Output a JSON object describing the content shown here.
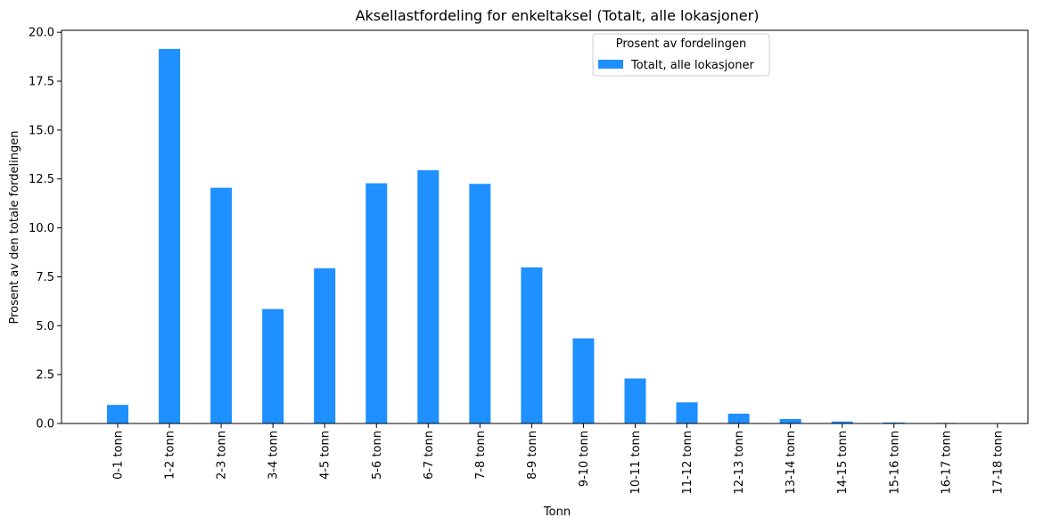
{
  "chart_data": {
    "type": "bar",
    "title": "Aksellastfordeling for enkeltaksel (Totalt, alle lokasjoner)",
    "xlabel": "Tonn",
    "ylabel": "Prosent av den totale fordelingen",
    "categories": [
      "0-1 tonn",
      "1-2 tonn",
      "2-3 tonn",
      "3-4 tonn",
      "4-5 tonn",
      "5-6 tonn",
      "6-7 tonn",
      "7-8 tonn",
      "8-9 tonn",
      "9-10 tonn",
      "10-11 tonn",
      "11-12 tonn",
      "12-13 tonn",
      "13-14 tonn",
      "14-15 tonn",
      "15-16 tonn",
      "16-17 tonn",
      "17-18 tonn"
    ],
    "series": [
      {
        "name": "Totalt, alle lokasjoner",
        "color": "#1e90ff",
        "values": [
          0.95,
          19.15,
          12.05,
          5.85,
          7.93,
          12.28,
          12.95,
          12.25,
          7.98,
          4.35,
          2.3,
          1.08,
          0.5,
          0.23,
          0.1,
          0.05,
          0.03,
          0.02
        ]
      }
    ],
    "ylim": [
      0,
      20.1
    ],
    "yticks": [
      "0.0",
      "2.5",
      "5.0",
      "7.5",
      "10.0",
      "12.5",
      "15.0",
      "17.5",
      "20.0"
    ],
    "legend": {
      "title": "Prosent av fordelingen",
      "placement": "top-center"
    },
    "grid": false
  }
}
